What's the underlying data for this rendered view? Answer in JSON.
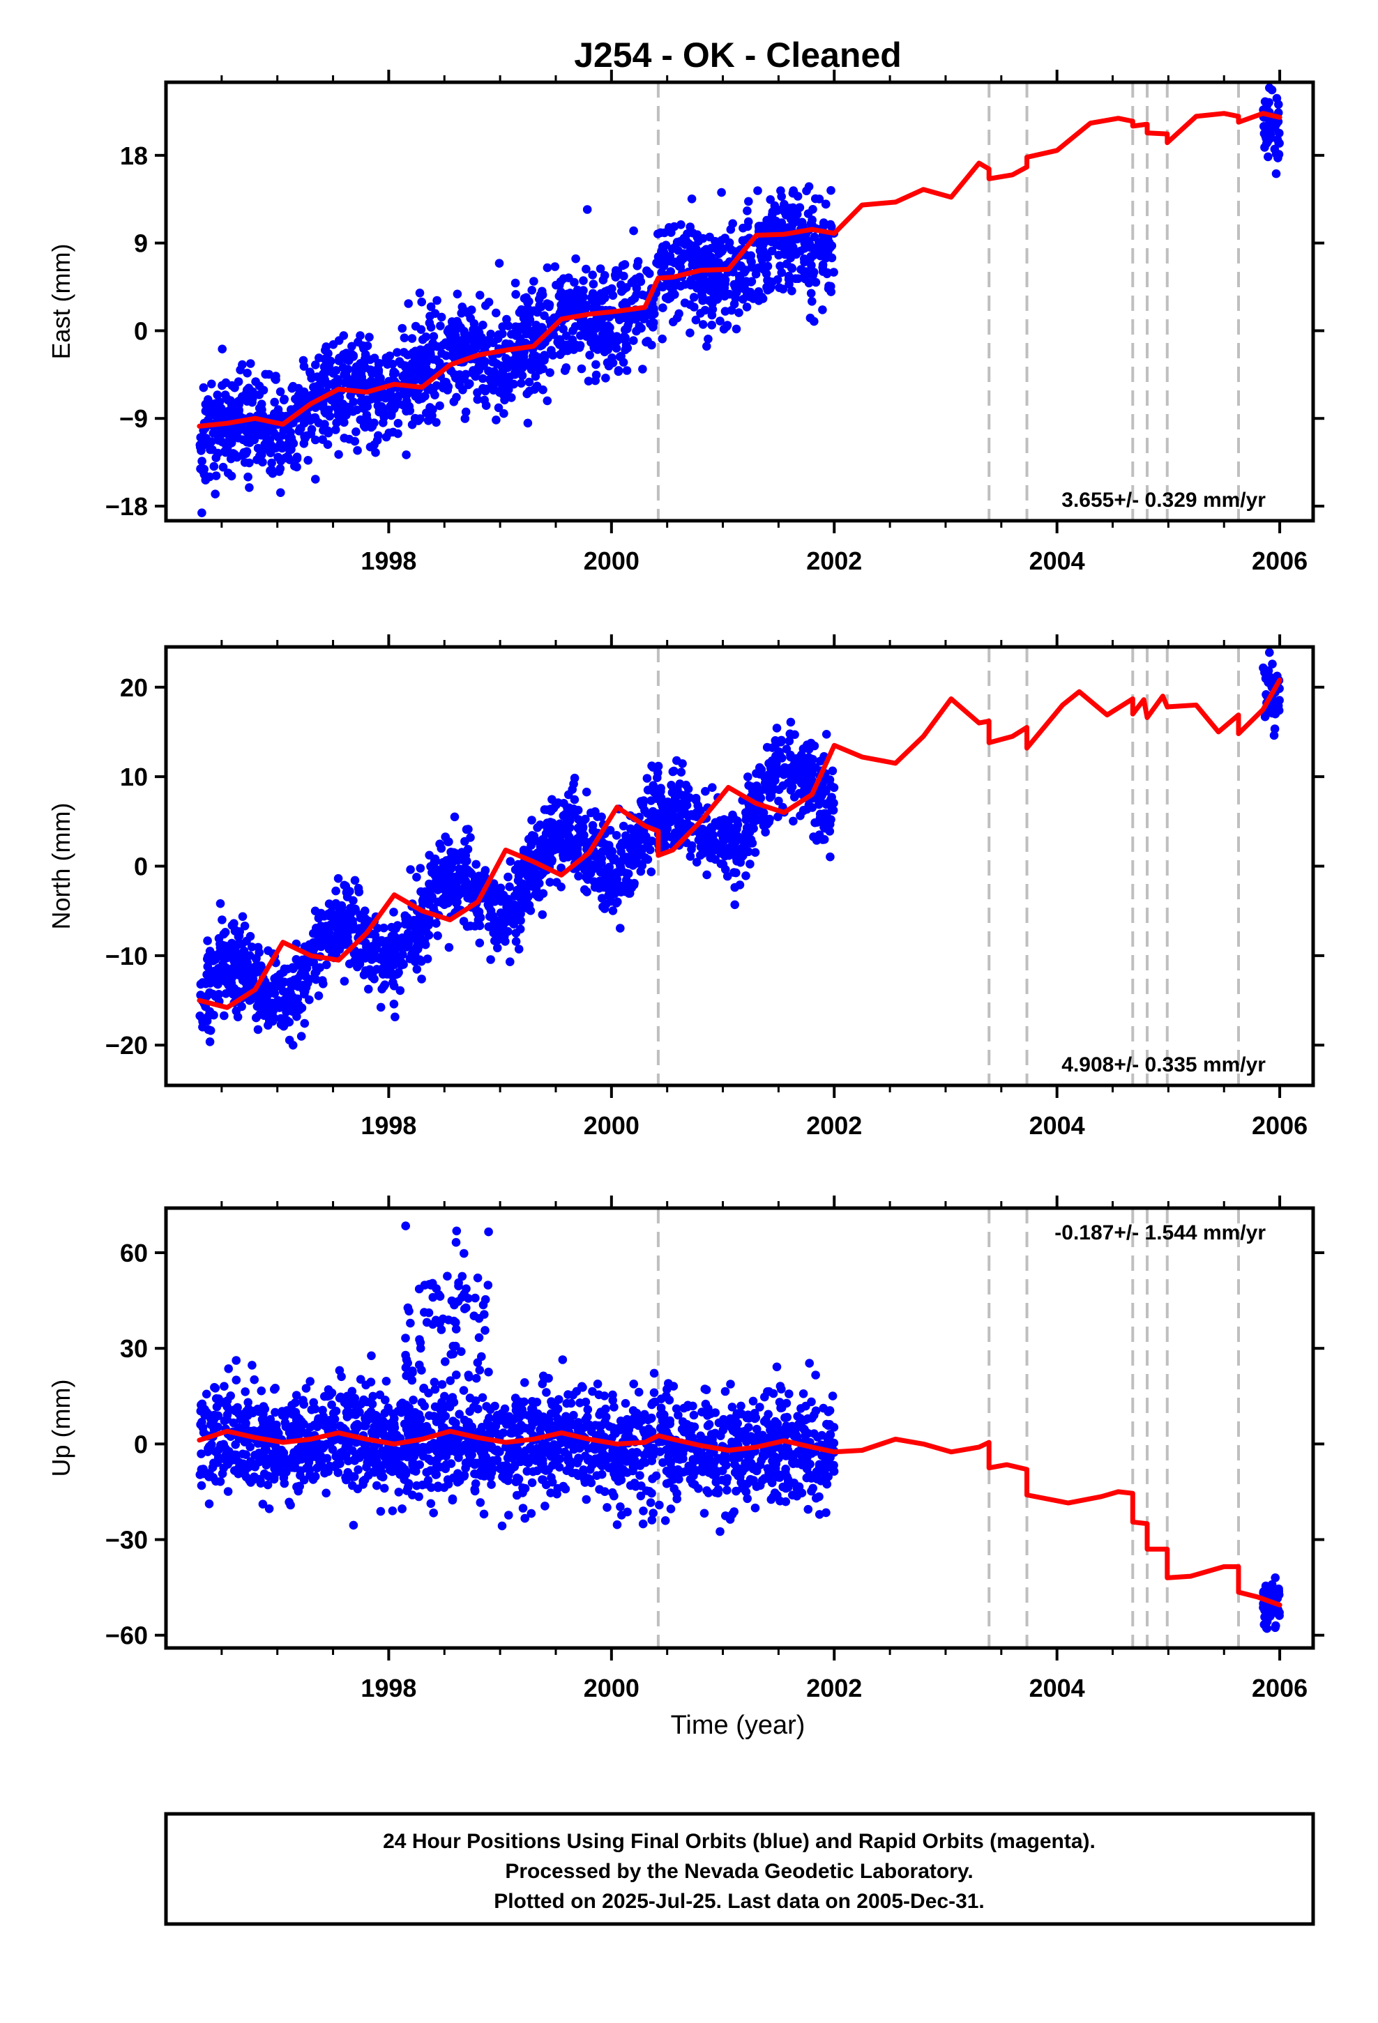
{
  "chart_data": {
    "type": "scatter",
    "title": "J254  - OK - Cleaned",
    "xlabel": "Time (year)",
    "xlim": [
      1996.0,
      2006.3
    ],
    "x_ticks": [
      1998,
      2000,
      2002,
      2004,
      2006
    ],
    "x_tick_labels": [
      "1998",
      "2000",
      "2002",
      "2004",
      "2006"
    ],
    "x_minor_ticks": [
      1996.5,
      1997.0,
      1997.5,
      1998.0,
      1998.5,
      1999.0,
      1999.5,
      2000.0,
      2000.5,
      2001.0,
      2001.5,
      2002.0,
      2002.5,
      2003.0,
      2003.5,
      2004.0,
      2004.5,
      2005.0,
      2005.5,
      2006.0
    ],
    "steps": [
      2000.42,
      2003.39,
      2003.73,
      2004.68,
      2004.81,
      2004.99,
      2005.63
    ],
    "grid": false,
    "panels": [
      {
        "id": "east",
        "ylabel": "East (mm)",
        "ylim": [
          -19.5,
          25.5
        ],
        "y_ticks": [
          -18,
          -9,
          0,
          9,
          18
        ],
        "y_tick_labels": [
          "−18",
          "−9",
          "0",
          "9",
          "18"
        ],
        "rate_text": "3.655+/- 0.329 mm/yr",
        "rate_position": "bottom-right",
        "series": [
          {
            "type": "scatter",
            "color": "#0000ff",
            "segments": [
              {
                "x0": 1996.3,
                "x1": 2002.0,
                "y0": -11.5,
                "slope": 3.655,
                "amp": 1.2,
                "noise": 2.6,
                "step": 0.7,
                "count": 1900
              },
              {
                "x0": 2005.85,
                "x1": 2006.0,
                "y0": 21.5,
                "slope": 0,
                "amp": 0,
                "noise": 2.0,
                "step": 0,
                "count": 45
              }
            ]
          },
          {
            "type": "line",
            "color": "#ff0000",
            "points": [
              [
                1996.3,
                -9.8
              ],
              [
                1996.55,
                -9.5
              ],
              [
                1996.8,
                -9.0
              ],
              [
                1997.05,
                -9.6
              ],
              [
                1997.3,
                -7.5
              ],
              [
                1997.55,
                -6.0
              ],
              [
                1997.8,
                -6.3
              ],
              [
                1998.05,
                -5.5
              ],
              [
                1998.3,
                -5.8
              ],
              [
                1998.55,
                -3.5
              ],
              [
                1998.8,
                -2.5
              ],
              [
                1999.05,
                -2.0
              ],
              [
                1999.3,
                -1.6
              ],
              [
                1999.55,
                1.2
              ],
              [
                1999.8,
                1.7
              ],
              [
                2000.05,
                2.0
              ],
              [
                2000.3,
                2.4
              ],
              [
                2000.42,
                5.4
              ],
              [
                2000.55,
                5.5
              ],
              [
                2000.8,
                6.2
              ],
              [
                2001.05,
                6.3
              ],
              [
                2001.3,
                9.8
              ],
              [
                2001.55,
                9.9
              ],
              [
                2001.8,
                10.4
              ],
              [
                2002.0,
                10.0
              ],
              [
                2002.25,
                12.9
              ],
              [
                2002.55,
                13.2
              ],
              [
                2002.8,
                14.5
              ],
              [
                2003.05,
                13.7
              ],
              [
                2003.3,
                17.2
              ],
              [
                2003.39,
                16.6
              ],
              [
                2003.39,
                15.6
              ],
              [
                2003.6,
                16.0
              ],
              [
                2003.73,
                16.8
              ],
              [
                2003.73,
                17.8
              ],
              [
                2004.0,
                18.5
              ],
              [
                2004.3,
                21.3
              ],
              [
                2004.55,
                21.8
              ],
              [
                2004.68,
                21.5
              ],
              [
                2004.68,
                21.0
              ],
              [
                2004.81,
                21.2
              ],
              [
                2004.81,
                20.3
              ],
              [
                2004.99,
                20.2
              ],
              [
                2004.99,
                19.3
              ],
              [
                2005.25,
                22.0
              ],
              [
                2005.5,
                22.3
              ],
              [
                2005.63,
                22.0
              ],
              [
                2005.63,
                21.4
              ],
              [
                2005.85,
                22.3
              ],
              [
                2006.0,
                21.9
              ]
            ]
          }
        ]
      },
      {
        "id": "north",
        "ylabel": "North (mm)",
        "ylim": [
          -24.5,
          24.5
        ],
        "y_ticks": [
          -20,
          -10,
          0,
          10,
          20
        ],
        "y_tick_labels": [
          "−20",
          "−10",
          "0",
          "10",
          "20"
        ],
        "rate_text": "4.908+/- 0.335 mm/yr",
        "rate_position": "bottom-right",
        "series": [
          {
            "type": "scatter",
            "color": "#0000ff",
            "segments": [
              {
                "x0": 1996.3,
                "x1": 2002.0,
                "y0": -15.5,
                "slope": 4.908,
                "amp": 3.2,
                "noise": 2.4,
                "step": -2.5,
                "count": 1900
              },
              {
                "x0": 2005.85,
                "x1": 2006.0,
                "y0": 19.5,
                "slope": 0,
                "amp": 0,
                "noise": 1.8,
                "step": 0,
                "count": 45
              }
            ]
          },
          {
            "type": "line",
            "color": "#ff0000",
            "points": [
              [
                1996.3,
                -15.0
              ],
              [
                1996.55,
                -15.8
              ],
              [
                1996.8,
                -13.8
              ],
              [
                1997.05,
                -8.5
              ],
              [
                1997.3,
                -10.0
              ],
              [
                1997.55,
                -10.5
              ],
              [
                1997.8,
                -7.5
              ],
              [
                1998.05,
                -3.2
              ],
              [
                1998.3,
                -5.0
              ],
              [
                1998.55,
                -6.0
              ],
              [
                1998.8,
                -4.0
              ],
              [
                1999.05,
                1.8
              ],
              [
                1999.3,
                0.5
              ],
              [
                1999.55,
                -1.0
              ],
              [
                1999.8,
                1.5
              ],
              [
                2000.05,
                6.6
              ],
              [
                2000.3,
                4.5
              ],
              [
                2000.42,
                3.9
              ],
              [
                2000.42,
                1.2
              ],
              [
                2000.55,
                1.8
              ],
              [
                2000.8,
                5.0
              ],
              [
                2001.05,
                8.8
              ],
              [
                2001.3,
                7.0
              ],
              [
                2001.55,
                6.0
              ],
              [
                2001.8,
                8.0
              ],
              [
                2002.0,
                13.5
              ],
              [
                2002.25,
                12.2
              ],
              [
                2002.55,
                11.5
              ],
              [
                2002.8,
                14.5
              ],
              [
                2003.05,
                18.7
              ],
              [
                2003.3,
                16.0
              ],
              [
                2003.39,
                16.2
              ],
              [
                2003.39,
                13.8
              ],
              [
                2003.6,
                14.5
              ],
              [
                2003.73,
                15.5
              ],
              [
                2003.73,
                13.2
              ],
              [
                2004.05,
                18.0
              ],
              [
                2004.2,
                19.5
              ],
              [
                2004.45,
                16.9
              ],
              [
                2004.68,
                18.7
              ],
              [
                2004.68,
                17.0
              ],
              [
                2004.78,
                18.6
              ],
              [
                2004.81,
                16.6
              ],
              [
                2004.95,
                19.0
              ],
              [
                2004.99,
                17.8
              ],
              [
                2005.25,
                18.0
              ],
              [
                2005.45,
                15.0
              ],
              [
                2005.63,
                16.9
              ],
              [
                2005.63,
                14.8
              ],
              [
                2005.85,
                17.5
              ],
              [
                2006.0,
                20.8
              ]
            ]
          }
        ]
      },
      {
        "id": "up",
        "ylabel": "Up (mm)",
        "ylim": [
          -64,
          74
        ],
        "y_ticks": [
          -60,
          -30,
          0,
          30,
          60
        ],
        "y_tick_labels": [
          "−60",
          "−30",
          "0",
          "30",
          "60"
        ],
        "rate_text": "-0.187+/- 1.544 mm/yr",
        "rate_position": "top-right",
        "series": [
          {
            "type": "scatter",
            "color": "#0000ff",
            "segments": [
              {
                "x0": 1996.3,
                "x1": 2002.0,
                "y0": 1.5,
                "slope": -0.6,
                "amp": 1.5,
                "noise": 8.5,
                "step": 0,
                "count": 1900
              },
              {
                "x0": 1998.1,
                "x1": 1998.9,
                "y0": 38,
                "slope": 0,
                "amp": 0,
                "noise": 12,
                "step": 0,
                "count": 80
              },
              {
                "x0": 2005.85,
                "x1": 2006.0,
                "y0": -51,
                "slope": 0,
                "amp": 0,
                "noise": 4.5,
                "step": 0,
                "count": 45
              }
            ]
          },
          {
            "type": "line",
            "color": "#ff0000",
            "points": [
              [
                1996.3,
                1.2
              ],
              [
                1996.55,
                4.0
              ],
              [
                1996.8,
                2.0
              ],
              [
                1997.05,
                0.5
              ],
              [
                1997.3,
                1.5
              ],
              [
                1997.55,
                3.5
              ],
              [
                1997.8,
                1.5
              ],
              [
                1998.05,
                0.0
              ],
              [
                1998.3,
                1.5
              ],
              [
                1998.55,
                4.0
              ],
              [
                1998.8,
                2.0
              ],
              [
                1999.05,
                0.5
              ],
              [
                1999.3,
                1.5
              ],
              [
                1999.55,
                3.5
              ],
              [
                1999.8,
                1.5
              ],
              [
                2000.05,
                0.0
              ],
              [
                2000.3,
                0.5
              ],
              [
                2000.42,
                2.6
              ],
              [
                2000.55,
                1.5
              ],
              [
                2000.8,
                -0.5
              ],
              [
                2001.05,
                -2.0
              ],
              [
                2001.3,
                -1.0
              ],
              [
                2001.55,
                1.0
              ],
              [
                2001.8,
                -1.0
              ],
              [
                2002.0,
                -2.5
              ],
              [
                2002.25,
                -2.0
              ],
              [
                2002.55,
                1.5
              ],
              [
                2002.8,
                0.0
              ],
              [
                2003.05,
                -2.5
              ],
              [
                2003.3,
                -1.0
              ],
              [
                2003.39,
                0.5
              ],
              [
                2003.39,
                -7.5
              ],
              [
                2003.55,
                -6.5
              ],
              [
                2003.73,
                -8.0
              ],
              [
                2003.73,
                -16.0
              ],
              [
                2004.1,
                -18.5
              ],
              [
                2004.4,
                -16.5
              ],
              [
                2004.55,
                -15.0
              ],
              [
                2004.68,
                -15.5
              ],
              [
                2004.68,
                -24.5
              ],
              [
                2004.81,
                -25.0
              ],
              [
                2004.81,
                -33.0
              ],
              [
                2004.99,
                -33.0
              ],
              [
                2004.99,
                -42.0
              ],
              [
                2005.2,
                -41.5
              ],
              [
                2005.5,
                -38.5
              ],
              [
                2005.63,
                -38.5
              ],
              [
                2005.63,
                -46.5
              ],
              [
                2005.8,
                -48.0
              ],
              [
                2006.0,
                -50.5
              ]
            ]
          }
        ]
      }
    ]
  },
  "footer": {
    "line1": "24 Hour Positions Using Final Orbits (blue) and Rapid Orbits (magenta).",
    "line2": "Processed by the Nevada Geodetic Laboratory.",
    "line3": "Plotted on 2025-Jul-25. Last data on 2005-Dec-31."
  }
}
